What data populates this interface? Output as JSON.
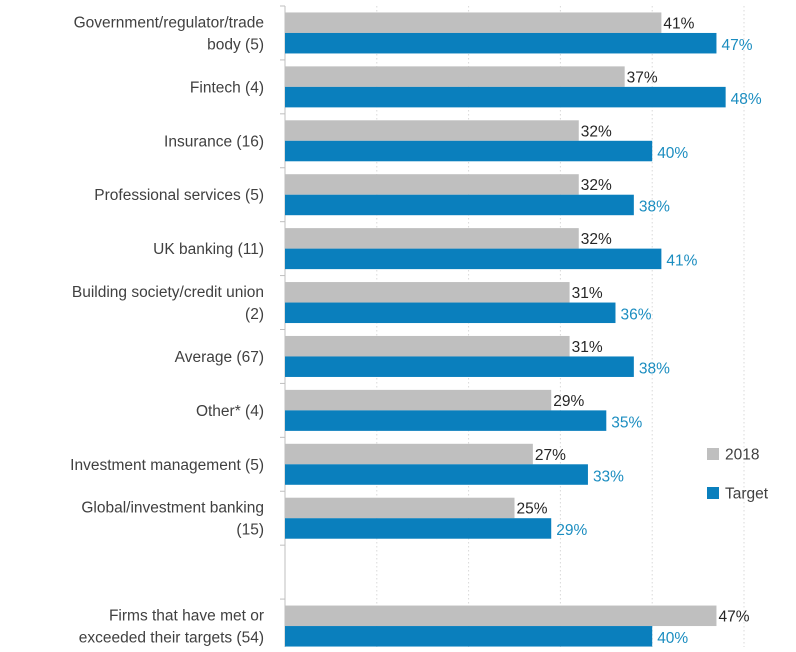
{
  "colors": {
    "series_2018": "#bfbfbf",
    "series_target": "#0a7fbd",
    "target_label": "#1b8dc0",
    "axis": "#bfbfbf",
    "grid": "#d9d9d9"
  },
  "chart_data": {
    "type": "bar",
    "orientation": "horizontal",
    "title": "",
    "xlabel": "",
    "ylabel": "",
    "xlim": [
      0,
      55
    ],
    "grid": true,
    "legend_position": "right",
    "value_suffix": "%",
    "categories": [
      [
        "Government/regulator/trade",
        "body (5)"
      ],
      [
        "Fintech (4)"
      ],
      [
        "Insurance (16)"
      ],
      [
        "Professional services (5)"
      ],
      [
        "UK banking (11)"
      ],
      [
        "Building society/credit union",
        "(2)"
      ],
      [
        "Average (67)"
      ],
      [
        "Other* (4)"
      ],
      [
        "Investment management (5)"
      ],
      [
        "Global/investment banking",
        "(15)"
      ],
      [],
      [
        "Firms that have met or",
        "exceeded their targets (54)"
      ]
    ],
    "series": [
      {
        "name": "2018",
        "values": [
          41,
          37,
          32,
          32,
          32,
          31,
          31,
          29,
          27,
          25,
          null,
          47
        ]
      },
      {
        "name": "Target",
        "values": [
          47,
          48,
          40,
          38,
          41,
          36,
          38,
          35,
          33,
          29,
          null,
          40
        ]
      }
    ]
  }
}
